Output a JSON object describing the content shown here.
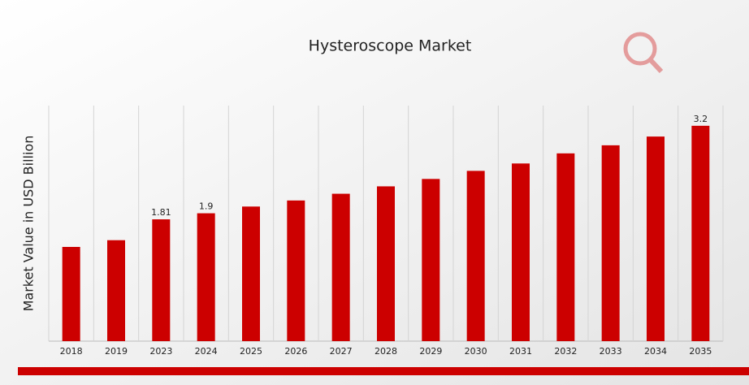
{
  "chart_data": {
    "type": "bar",
    "title": "Hysteroscope Market",
    "y_label": "Market Value in USD Billion",
    "categories": [
      "2018",
      "2019",
      "2023",
      "2024",
      "2025",
      "2026",
      "2027",
      "2028",
      "2029",
      "2030",
      "2031",
      "2032",
      "2033",
      "2034",
      "2035"
    ],
    "values": [
      1.4,
      1.5,
      1.81,
      1.9,
      2.0,
      2.09,
      2.19,
      2.3,
      2.41,
      2.53,
      2.64,
      2.79,
      2.91,
      3.04,
      3.2
    ],
    "value_labels": [
      null,
      null,
      "1.81",
      "1.9",
      null,
      null,
      null,
      null,
      null,
      null,
      null,
      null,
      null,
      null,
      "3.2"
    ],
    "color": "#cc0000",
    "ylim": [
      0,
      3.5
    ],
    "grid": true
  }
}
